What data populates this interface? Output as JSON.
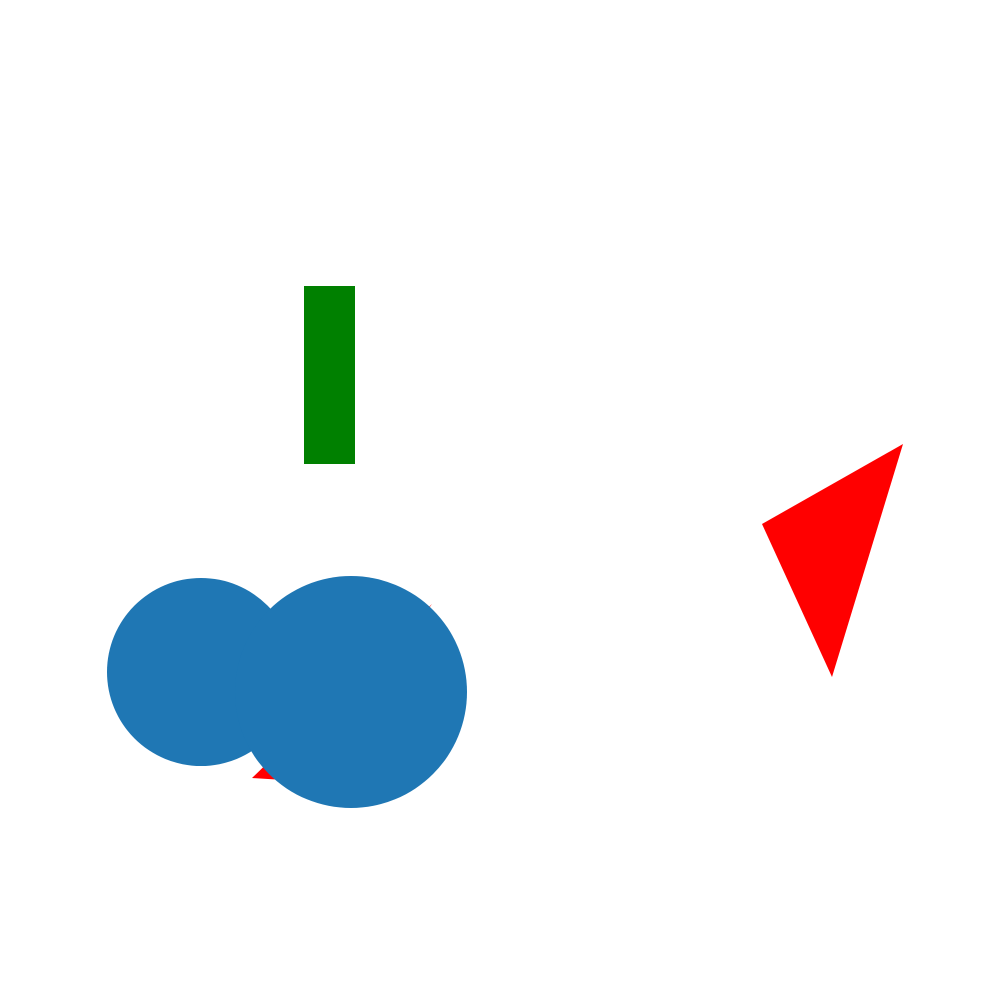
{
  "shapes": {
    "green_rectangle": {
      "color": "#008000"
    },
    "red_triangle_right": {
      "color": "#ff0000"
    },
    "red_triangle_hidden": {
      "color": "#ff0000"
    },
    "blue_circle_left": {
      "color": "#1f77b4"
    },
    "blue_circle_right": {
      "color": "#1f77b4"
    }
  }
}
